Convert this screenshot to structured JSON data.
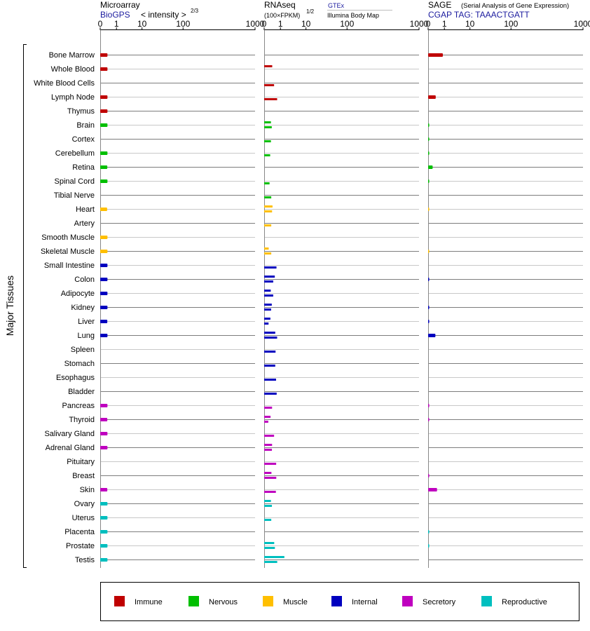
{
  "panels": {
    "microarray": {
      "title": "Microarray",
      "source": "BioGPS",
      "unit": "< intensity >",
      "unit_exp": "2/3"
    },
    "rnaseq": {
      "title": "RNAseq",
      "unit": "(100×FPKM)",
      "unit_exp": "1/2",
      "source_top": "GTEx",
      "source_bottom": "Illumina Body Map"
    },
    "sage": {
      "title": "SAGE",
      "subtitle": "(Serial Analysis of Gene Expression)",
      "tag": "CGAP TAG: TAAACTGATT"
    }
  },
  "tissue_group_label": "Major Tissues",
  "legend": [
    {
      "label": "Immune",
      "color": "#bf0000"
    },
    {
      "label": "Nervous",
      "color": "#00bf00"
    },
    {
      "label": "Muscle",
      "color": "#ffbf00"
    },
    {
      "label": "Internal",
      "color": "#0000bf"
    },
    {
      "label": "Secretory",
      "color": "#bf00bf"
    },
    {
      "label": "Reproductive",
      "color": "#00bfbf"
    }
  ],
  "chart_data": {
    "type": "bar",
    "orientation": "horizontal",
    "x_ticks": [
      "0",
      "1",
      "10",
      "100",
      "1000"
    ],
    "x_tick_values": [
      0,
      1,
      10,
      100,
      1000
    ],
    "scale": "sqrt",
    "xlim": [
      0,
      1000
    ],
    "categories": [
      "Bone Marrow",
      "Whole Blood",
      "White Blood Cells",
      "Lymph Node",
      "Thymus",
      "Brain",
      "Cortex",
      "Cerebellum",
      "Retina",
      "Spinal Cord",
      "Tibial Nerve",
      "Heart",
      "Artery",
      "Smooth Muscle",
      "Skeletal Muscle",
      "Small Intestine",
      "Colon",
      "Adipocyte",
      "Kidney",
      "Liver",
      "Lung",
      "Spleen",
      "Stomach",
      "Esophagus",
      "Bladder",
      "Pancreas",
      "Thyroid",
      "Salivary Gland",
      "Adrenal Gland",
      "Pituitary",
      "Breast",
      "Skin",
      "Ovary",
      "Uterus",
      "Placenta",
      "Prostate",
      "Testis"
    ],
    "system": [
      "Immune",
      "Immune",
      "Immune",
      "Immune",
      "Immune",
      "Nervous",
      "Nervous",
      "Nervous",
      "Nervous",
      "Nervous",
      "Nervous",
      "Muscle",
      "Muscle",
      "Muscle",
      "Muscle",
      "Internal",
      "Internal",
      "Internal",
      "Internal",
      "Internal",
      "Internal",
      "Internal",
      "Internal",
      "Internal",
      "Internal",
      "Secretory",
      "Secretory",
      "Secretory",
      "Secretory",
      "Secretory",
      "Secretory",
      "Secretory",
      "Reproductive",
      "Reproductive",
      "Reproductive",
      "Reproductive",
      "Reproductive"
    ],
    "microarray": [
      2.2,
      2.2,
      null,
      2.2,
      2.2,
      2.2,
      null,
      2.2,
      2.1,
      2.2,
      null,
      2.0,
      null,
      2.2,
      2.2,
      2.2,
      2.2,
      2.2,
      2.2,
      2.1,
      2.2,
      null,
      null,
      null,
      null,
      2.2,
      2.1,
      2.2,
      2.2,
      null,
      null,
      2.1,
      2.2,
      2.2,
      2.2,
      2.2,
      2.2
    ],
    "rnaseq_gtex": [
      null,
      2.7,
      null,
      null,
      null,
      1.9,
      null,
      null,
      null,
      null,
      null,
      2.9,
      null,
      null,
      0.85,
      null,
      null,
      1.8,
      2.4,
      1.6,
      null,
      null,
      null,
      null,
      null,
      null,
      1.7,
      null,
      2.6,
      null,
      2.2,
      null,
      1.9,
      null,
      null,
      null,
      null
    ],
    "rnaseq_illumina": [
      null,
      null,
      4.1,
      7.0,
      null,
      2.4,
      1.9,
      1.5,
      null,
      1.2,
      2.1,
      2.6,
      2.1,
      null,
      2.1,
      6.3,
      3.4,
      3.4,
      2.0,
      0.8,
      7.0,
      5.4,
      5.1,
      5.9,
      6.5,
      2.6,
      0.7,
      4.1,
      2.5,
      6.0,
      6.1,
      5.7,
      2.5,
      2.1,
      null,
      4.8,
      7.1
    ],
    "rnaseq_gtex_extra": {
      "Lung": 5.1,
      "Testis": 17.0,
      "Colon": 4.7,
      "Prostate": 4.2
    },
    "sage": [
      9.0,
      null,
      null,
      2.4,
      null,
      0.01,
      0.01,
      0.01,
      0.85,
      0.01,
      null,
      0.005,
      null,
      null,
      0.005,
      null,
      0.02,
      null,
      0.02,
      0.02,
      2.2,
      null,
      null,
      null,
      null,
      0.02,
      0.02,
      null,
      null,
      null,
      0.02,
      3.3,
      null,
      null,
      0.01,
      0.01,
      null
    ]
  }
}
